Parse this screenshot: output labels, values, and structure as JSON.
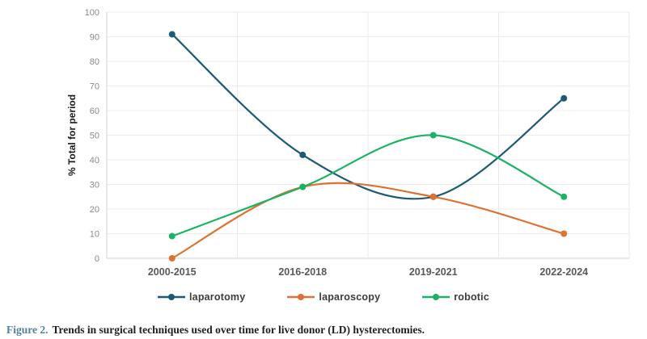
{
  "figure": {
    "caption_label": "Figure 2.",
    "caption_text": "Trends in surgical techniques used over time for live donor (LD) hysterectomies."
  },
  "chart_data": {
    "type": "line",
    "title": "",
    "xlabel": "",
    "ylabel": "% Total for period",
    "ylim": [
      0,
      100
    ],
    "yticks": [
      0,
      10,
      20,
      30,
      40,
      50,
      60,
      70,
      80,
      90,
      100
    ],
    "grid": true,
    "smooth": true,
    "legend_position": "bottom",
    "categories": [
      "2000-2015",
      "2016-2018",
      "2019-2021",
      "2022-2024"
    ],
    "series": [
      {
        "name": "laparotomy",
        "color": "#1e5a75",
        "values": [
          91,
          42,
          25,
          65
        ]
      },
      {
        "name": "laparoscopy",
        "color": "#de7232",
        "values": [
          0,
          29,
          25,
          10
        ]
      },
      {
        "name": "robotic",
        "color": "#1cb264",
        "values": [
          9,
          29,
          50,
          25
        ]
      }
    ],
    "colors": {
      "gridline": "#ebebeb",
      "axis_line": "#d2d2d2",
      "tick_label": "#8a8a8a",
      "category_label": "#595959",
      "caption_accent": "#54819c"
    }
  }
}
